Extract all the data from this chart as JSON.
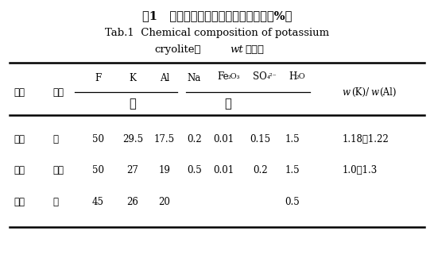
{
  "title_cn": "表1   钾冰晶石的化学成分（质量分数／%）",
  "title_en_line1": "Tab.1  Chemical composition of potassium",
  "title_en_line2_pre": "cryolite（",
  "title_en_line2_italic": "wt",
  "title_en_line2_post": "/％）",
  "rows": [
    {
      "grade": "优级",
      "color": "白",
      "F": "50",
      "K": "29.5",
      "Al": "17.5",
      "Na": "0.2",
      "Fe2O3": "0.01",
      "SO4": "0.15",
      "H2O": "1.5",
      "ratio": "1.18～1.22"
    },
    {
      "grade": "一级",
      "color": "灰白",
      "F": "50",
      "K": "27",
      "Al": "19",
      "Na": "0.5",
      "Fe2O3": "0.01",
      "SO4": "0.2",
      "H2O": "1.5",
      "ratio": "1.0～1.3"
    },
    {
      "grade": "二级",
      "color": "灰",
      "F": "45",
      "K": "26",
      "Al": "20",
      "Na": "",
      "Fe2O3": "",
      "SO4": "",
      "H2O": "0.5",
      "ratio": ""
    }
  ],
  "bg_color": "#ffffff",
  "text_color": "#000000"
}
